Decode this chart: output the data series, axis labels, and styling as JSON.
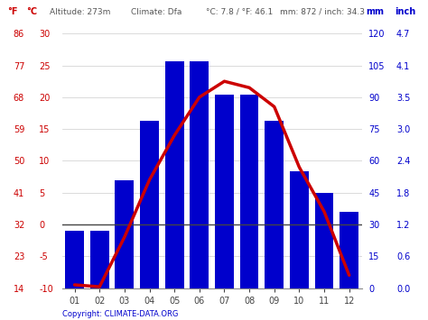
{
  "months": [
    "01",
    "02",
    "03",
    "04",
    "05",
    "06",
    "07",
    "08",
    "09",
    "10",
    "11",
    "12"
  ],
  "precipitation_mm": [
    27,
    27,
    51,
    79,
    107,
    107,
    91,
    91,
    79,
    55,
    45,
    36
  ],
  "temperature_c": [
    -9.5,
    -9.8,
    -2,
    7,
    14,
    20,
    22.5,
    21.5,
    18.5,
    9,
    2,
    -8
  ],
  "bar_color": "#0000cc",
  "line_color": "#cc0000",
  "zero_line_color": "#444444",
  "background_color": "#ffffff",
  "left_axis1_label": "°F",
  "left_axis2_label": "°C",
  "right_axis1_label": "mm",
  "right_axis2_label": "inch",
  "copyright_text": "Copyright: CLIMATE-DATA.ORG",
  "temp_ylim": [
    -10,
    30
  ],
  "precip_ylim": [
    0,
    120
  ],
  "temp_ticks_c": [
    -10,
    -5,
    0,
    5,
    10,
    15,
    20,
    25,
    30
  ],
  "temp_ticks_f": [
    14,
    23,
    32,
    41,
    50,
    59,
    68,
    77,
    86
  ],
  "precip_ticks_mm": [
    0,
    15,
    30,
    45,
    60,
    75,
    90,
    105,
    120
  ],
  "precip_ticks_inch": [
    "0.0",
    "0.6",
    "1.2",
    "1.8",
    "2.4",
    "3.0",
    "3.5",
    "4.1",
    "4.7"
  ]
}
